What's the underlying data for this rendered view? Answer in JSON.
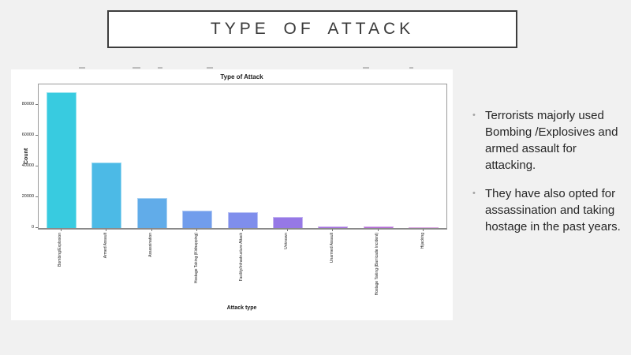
{
  "slide": {
    "title": "TYPE OF ATTACK",
    "background": "#f1f1f1"
  },
  "chart_data": {
    "type": "bar",
    "title": "Type of Attack",
    "xlabel": "Attack type",
    "ylabel": "Count",
    "categories": [
      "Bombing/Explosion",
      "Armed Assault",
      "Assassination",
      "Hostage Taking (Kidnapping)",
      "Facility/Infrastructure Attack",
      "Unknown",
      "Unarmed Assault",
      "Hostage Taking (Barricade Incident)",
      "Hijacking"
    ],
    "values": [
      88255,
      42669,
      19312,
      11158,
      10356,
      7276,
      1015,
      991,
      659
    ],
    "bar_colors": [
      "#38cbe0",
      "#4cbae6",
      "#61ace9",
      "#719dec",
      "#7f8eec",
      "#9678e6",
      "#a673e0",
      "#b56dd8",
      "#c569d1"
    ],
    "yticks": [
      0,
      20000,
      40000,
      60000,
      80000
    ],
    "ylim": [
      0,
      93330
    ],
    "grid": false,
    "legend_position": "none"
  },
  "notes": {
    "bullet_glyph": "•",
    "bullets": [
      "Terrorists majorly used Bombing /Explosives and armed assault for attacking.",
      "They have also opted for assassination and taking hostage in the past years."
    ]
  }
}
